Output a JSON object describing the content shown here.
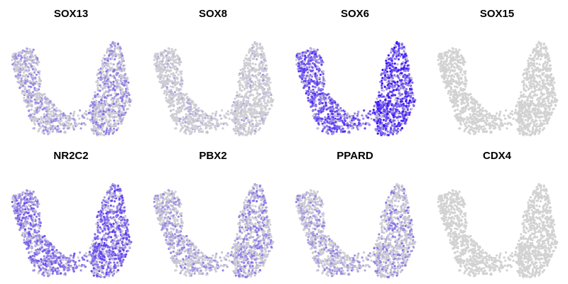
{
  "chart_data": {
    "type": "scatter",
    "description_kind": "feature-plot grid of gene expression on a shared 2-D embedding",
    "colors": {
      "low": "#d3d3d3",
      "high": "#3a10ff",
      "background": "#ffffff"
    },
    "grid": false,
    "axes_visible": false,
    "legend": "none",
    "layout": {
      "rows": 2,
      "cols": 4
    },
    "panels": [
      {
        "title": "SOX13",
        "expression_level": 0.35,
        "sparsity": 0.55
      },
      {
        "title": "SOX8",
        "expression_level": 0.2,
        "sparsity": 0.85
      },
      {
        "title": "SOX6",
        "expression_level": 0.7,
        "sparsity": 0.15
      },
      {
        "title": "SOX15",
        "expression_level": 0.03,
        "sparsity": 0.99
      },
      {
        "title": "NR2C2",
        "expression_level": 0.55,
        "sparsity": 0.25
      },
      {
        "title": "PBX2",
        "expression_level": 0.35,
        "sparsity": 0.55
      },
      {
        "title": "PPARD",
        "expression_level": 0.35,
        "sparsity": 0.6
      },
      {
        "title": "CDX4",
        "expression_level": 0.02,
        "sparsity": 0.995
      }
    ]
  }
}
